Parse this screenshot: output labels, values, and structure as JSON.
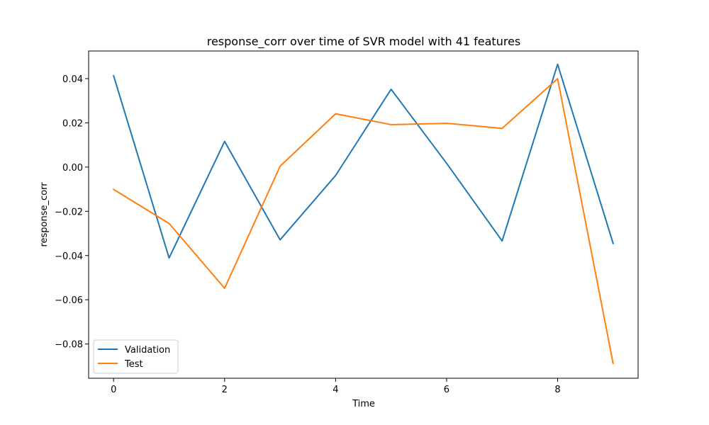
{
  "chart_data": {
    "type": "line",
    "title": "response_corr over time of SVR model with 41 features",
    "xlabel": "Time",
    "ylabel": "response_corr",
    "x": [
      0,
      1,
      2,
      3,
      4,
      5,
      6,
      7,
      8,
      9
    ],
    "xlim": [
      -0.45,
      9.45
    ],
    "ylim": [
      -0.0955,
      0.0525
    ],
    "xticks": [
      0,
      2,
      4,
      6,
      8
    ],
    "yticks": [
      -0.08,
      -0.06,
      -0.04,
      -0.02,
      0.0,
      0.02,
      0.04
    ],
    "ytick_labels": [
      "−0.08",
      "−0.06",
      "−0.04",
      "−0.02",
      "0.00",
      "0.02",
      "0.04"
    ],
    "grid": false,
    "legend_position": "lower-left",
    "series": [
      {
        "name": "Validation",
        "color": "#1f77b4",
        "values": [
          0.0413,
          -0.0411,
          0.0116,
          -0.0329,
          -0.0038,
          0.0352,
          0.0017,
          -0.0334,
          0.0465,
          -0.0345
        ]
      },
      {
        "name": "Test",
        "color": "#ff7f0e",
        "values": [
          -0.0101,
          -0.0255,
          -0.0548,
          0.0004,
          0.0241,
          0.0192,
          0.0198,
          0.0175,
          0.04,
          -0.0888
        ]
      }
    ]
  }
}
